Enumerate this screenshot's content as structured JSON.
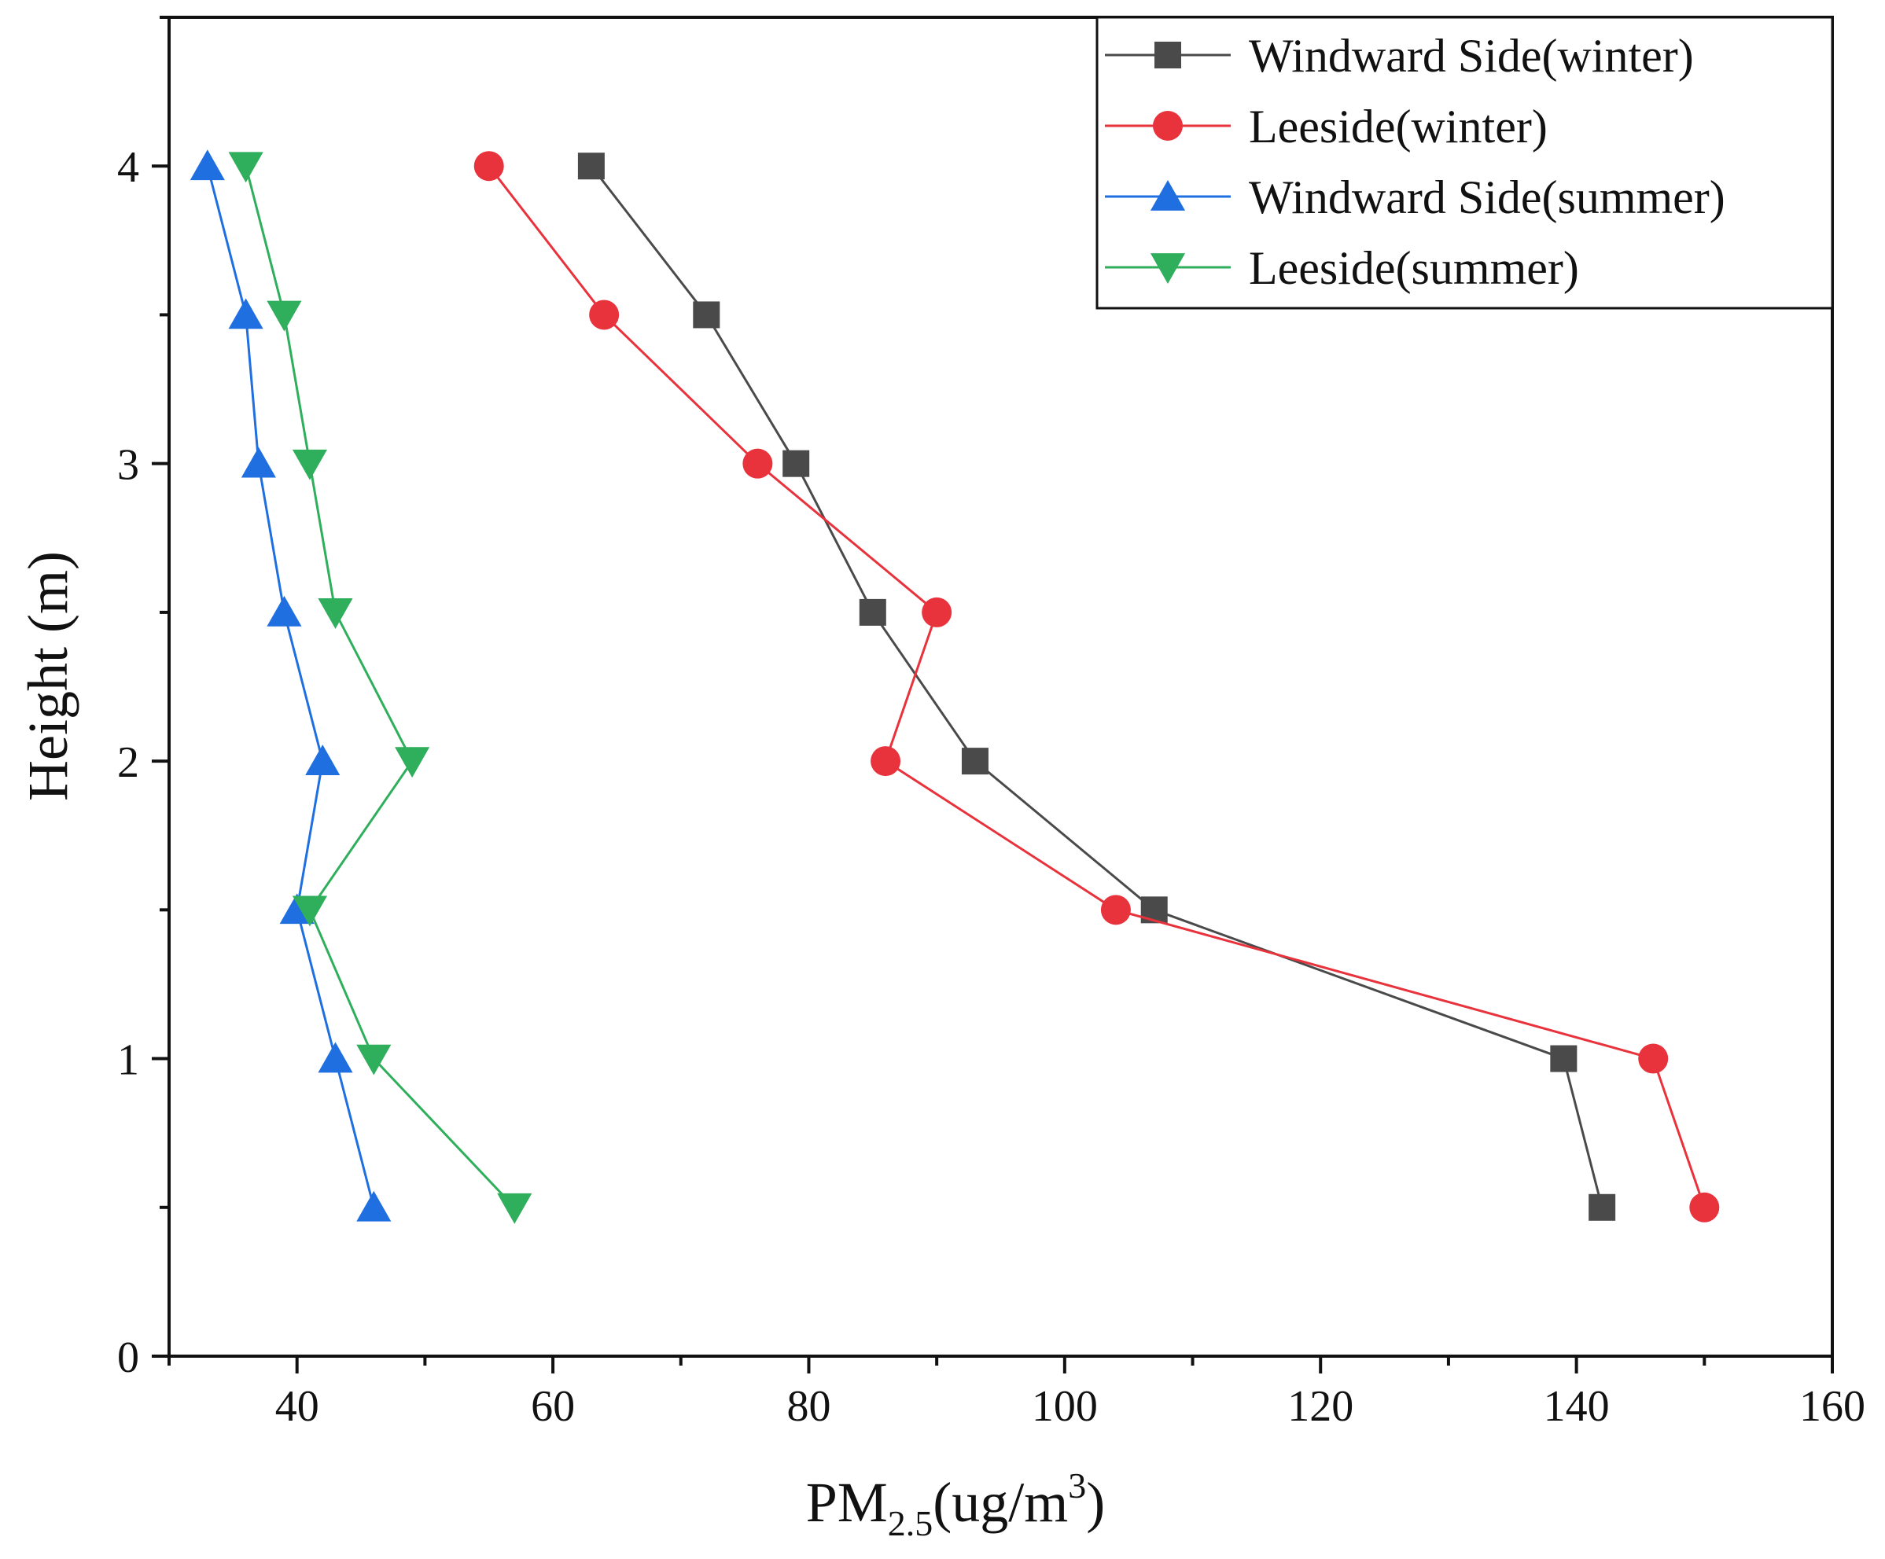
{
  "chart_data": {
    "type": "line",
    "title": "",
    "xlabel": "PM2.5(ug/m3)",
    "xlabel_parts": {
      "base": "PM",
      "sub": "2.5",
      "mid": "(ug/m",
      "sup": "3",
      "end": ")"
    },
    "ylabel": "Height (m)",
    "xlim": [
      30,
      160
    ],
    "ylim": [
      0,
      4.5
    ],
    "xticks": [
      40,
      60,
      80,
      100,
      120,
      140,
      160
    ],
    "yticks": [
      0,
      1,
      2,
      3,
      4
    ],
    "grid": false,
    "legend_position": "top-right",
    "series": [
      {
        "name": "Windward Side(winter)",
        "color": "#4a4a4a",
        "marker": "square",
        "x": [
          63,
          72,
          79,
          85,
          93,
          107,
          139,
          142
        ],
        "y": [
          4,
          3.5,
          3,
          2.5,
          2,
          1.5,
          1,
          0.5
        ]
      },
      {
        "name": "Leeside(winter)",
        "color": "#e8323c",
        "marker": "circle",
        "x": [
          55,
          64,
          76,
          90,
          86,
          104,
          146,
          150
        ],
        "y": [
          4,
          3.5,
          3,
          2.5,
          2,
          1.5,
          1,
          0.5
        ]
      },
      {
        "name": "Windward Side(summer)",
        "color": "#1f6fe0",
        "marker": "triangle-up",
        "x": [
          33,
          36,
          37,
          39,
          42,
          40,
          43,
          46
        ],
        "y": [
          4,
          3.5,
          3,
          2.5,
          2,
          1.5,
          1,
          0.5
        ]
      },
      {
        "name": "Leeside(summer)",
        "color": "#2fae5c",
        "marker": "triangle-down",
        "x": [
          36,
          39,
          41,
          43,
          49,
          41,
          46,
          57
        ],
        "y": [
          4,
          3.5,
          3,
          2.5,
          2,
          1.5,
          1,
          0.5
        ]
      }
    ]
  }
}
